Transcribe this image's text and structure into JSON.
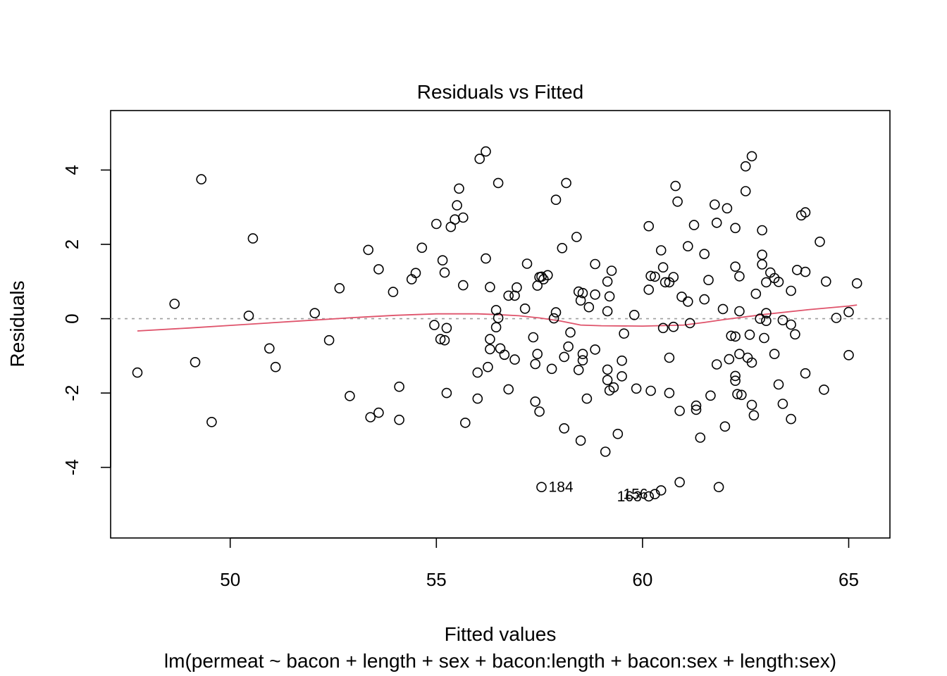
{
  "chart_data": {
    "type": "scatter",
    "title": "Residuals vs Fitted",
    "xlabel": "Fitted values",
    "ylabel": "Residuals",
    "subtitle": "lm(permeat ~ bacon + length + sex + bacon:length + bacon:sex + length:sex)",
    "xlim": [
      47.1,
      66.0
    ],
    "ylim": [
      -5.9,
      5.6
    ],
    "xticks": [
      50,
      55,
      60,
      65
    ],
    "yticks": [
      -4,
      -2,
      0,
      2,
      4
    ],
    "xtick_labels": [
      "50",
      "55",
      "60",
      "65"
    ],
    "ytick_labels": [
      "-4",
      "-2",
      "0",
      "2",
      "4"
    ],
    "zero_line": 0,
    "colors": {
      "points": "#000000",
      "smooth": "#DF536B",
      "zero_line": "#9E9E9E"
    },
    "points": [
      [
        47.75,
        -1.45
      ],
      [
        48.65,
        0.4
      ],
      [
        49.15,
        -1.17
      ],
      [
        49.3,
        3.75
      ],
      [
        49.55,
        -2.78
      ],
      [
        50.45,
        0.08
      ],
      [
        50.55,
        2.16
      ],
      [
        50.95,
        -0.8
      ],
      [
        51.1,
        -1.3
      ],
      [
        52.05,
        0.15
      ],
      [
        52.4,
        -0.58
      ],
      [
        52.65,
        0.82
      ],
      [
        52.9,
        -2.08
      ],
      [
        53.35,
        1.85
      ],
      [
        53.4,
        -2.65
      ],
      [
        53.6,
        1.33
      ],
      [
        53.6,
        -2.53
      ],
      [
        53.95,
        0.72
      ],
      [
        54.1,
        -1.83
      ],
      [
        54.1,
        -2.72
      ],
      [
        54.4,
        1.06
      ],
      [
        54.5,
        1.23
      ],
      [
        54.65,
        1.91
      ],
      [
        54.95,
        -0.17
      ],
      [
        55.0,
        2.55
      ],
      [
        55.1,
        -0.55
      ],
      [
        55.15,
        1.57
      ],
      [
        55.2,
        1.24
      ],
      [
        55.2,
        -0.58
      ],
      [
        55.25,
        -2.0
      ],
      [
        55.25,
        -0.25
      ],
      [
        55.35,
        2.47
      ],
      [
        55.45,
        2.67
      ],
      [
        55.5,
        3.05
      ],
      [
        55.55,
        3.5
      ],
      [
        55.65,
        2.72
      ],
      [
        55.65,
        0.9
      ],
      [
        55.7,
        -2.8
      ],
      [
        56.0,
        -2.15
      ],
      [
        56.0,
        -1.45
      ],
      [
        56.05,
        4.3
      ],
      [
        56.2,
        4.5
      ],
      [
        56.2,
        1.62
      ],
      [
        56.25,
        -1.3
      ],
      [
        56.3,
        0.85
      ],
      [
        56.3,
        -0.55
      ],
      [
        56.3,
        -0.82
      ],
      [
        56.45,
        0.23
      ],
      [
        56.45,
        -0.23
      ],
      [
        56.5,
        3.65
      ],
      [
        56.5,
        0.02
      ],
      [
        56.55,
        -0.8
      ],
      [
        56.65,
        -0.97
      ],
      [
        56.75,
        -1.9
      ],
      [
        56.75,
        0.62
      ],
      [
        56.9,
        0.62
      ],
      [
        56.9,
        -1.1
      ],
      [
        56.95,
        0.84
      ],
      [
        57.15,
        0.27
      ],
      [
        57.2,
        1.48
      ],
      [
        57.35,
        -0.5
      ],
      [
        57.4,
        -1.22
      ],
      [
        57.4,
        -2.23
      ],
      [
        57.45,
        0.89
      ],
      [
        57.45,
        -0.95
      ],
      [
        57.5,
        -2.5
      ],
      [
        57.5,
        1.12
      ],
      [
        57.55,
        1.13
      ],
      [
        57.6,
        1.06
      ],
      [
        57.7,
        1.17
      ],
      [
        57.8,
        -1.35
      ],
      [
        57.85,
        0.01
      ],
      [
        57.9,
        3.2
      ],
      [
        57.9,
        0.17
      ],
      [
        58.05,
        1.9
      ],
      [
        58.1,
        -2.95
      ],
      [
        58.1,
        -1.03
      ],
      [
        58.15,
        3.65
      ],
      [
        58.2,
        -0.75
      ],
      [
        58.25,
        -0.37
      ],
      [
        58.4,
        2.2
      ],
      [
        58.45,
        0.73
      ],
      [
        58.45,
        -1.38
      ],
      [
        58.5,
        -3.28
      ],
      [
        58.5,
        0.49
      ],
      [
        58.55,
        -1.12
      ],
      [
        58.55,
        -0.95
      ],
      [
        58.55,
        0.69
      ],
      [
        58.65,
        -2.15
      ],
      [
        58.7,
        0.31
      ],
      [
        58.85,
        1.47
      ],
      [
        58.85,
        0.65
      ],
      [
        58.85,
        -0.83
      ],
      [
        59.1,
        -3.58
      ],
      [
        59.15,
        1.0
      ],
      [
        59.15,
        0.2
      ],
      [
        59.15,
        -1.37
      ],
      [
        59.15,
        -1.65
      ],
      [
        59.2,
        -1.93
      ],
      [
        59.2,
        0.6
      ],
      [
        59.25,
        1.29
      ],
      [
        59.3,
        -1.85
      ],
      [
        59.4,
        -3.1
      ],
      [
        59.5,
        -1.13
      ],
      [
        59.5,
        -1.55
      ],
      [
        59.55,
        -0.4
      ],
      [
        59.8,
        0.1
      ],
      [
        59.85,
        -1.88
      ],
      [
        60.15,
        2.49
      ],
      [
        60.15,
        0.78
      ],
      [
        60.2,
        1.15
      ],
      [
        60.2,
        -1.94
      ],
      [
        60.3,
        1.13
      ],
      [
        60.45,
        1.84
      ],
      [
        60.5,
        -0.25
      ],
      [
        60.5,
        1.38
      ],
      [
        60.55,
        0.98
      ],
      [
        60.65,
        0.98
      ],
      [
        60.65,
        -1.05
      ],
      [
        60.65,
        -2.0
      ],
      [
        60.75,
        1.12
      ],
      [
        60.75,
        -0.22
      ],
      [
        60.8,
        3.57
      ],
      [
        60.85,
        3.15
      ],
      [
        60.9,
        -2.48
      ],
      [
        60.95,
        0.59
      ],
      [
        61.1,
        1.95
      ],
      [
        61.1,
        0.46
      ],
      [
        61.15,
        -0.12
      ],
      [
        61.25,
        2.52
      ],
      [
        61.3,
        -2.45
      ],
      [
        61.3,
        -2.34
      ],
      [
        61.4,
        -3.2
      ],
      [
        61.5,
        1.74
      ],
      [
        61.5,
        0.52
      ],
      [
        61.6,
        1.04
      ],
      [
        61.65,
        -2.07
      ],
      [
        61.75,
        3.07
      ],
      [
        61.8,
        2.58
      ],
      [
        61.8,
        -1.23
      ],
      [
        61.95,
        0.26
      ],
      [
        62.0,
        -2.9
      ],
      [
        62.05,
        2.97
      ],
      [
        62.1,
        -1.09
      ],
      [
        62.15,
        -0.46
      ],
      [
        62.25,
        2.44
      ],
      [
        62.25,
        1.4
      ],
      [
        62.25,
        -0.48
      ],
      [
        62.25,
        -1.54
      ],
      [
        62.25,
        -1.67
      ],
      [
        62.3,
        -2.03
      ],
      [
        62.35,
        1.14
      ],
      [
        62.35,
        0.2
      ],
      [
        62.35,
        -0.95
      ],
      [
        62.4,
        -2.05
      ],
      [
        62.5,
        4.1
      ],
      [
        62.5,
        3.43
      ],
      [
        62.55,
        -1.05
      ],
      [
        62.6,
        -0.43
      ],
      [
        62.65,
        4.37
      ],
      [
        62.65,
        -1.18
      ],
      [
        62.65,
        -2.32
      ],
      [
        62.7,
        -2.6
      ],
      [
        62.75,
        0.67
      ],
      [
        62.85,
        0.0
      ],
      [
        62.9,
        2.38
      ],
      [
        62.9,
        1.72
      ],
      [
        62.9,
        1.46
      ],
      [
        62.95,
        -0.52
      ],
      [
        63.0,
        0.98
      ],
      [
        63.0,
        -0.06
      ],
      [
        63.0,
        0.15
      ],
      [
        63.1,
        1.24
      ],
      [
        63.2,
        1.09
      ],
      [
        63.2,
        -0.95
      ],
      [
        63.3,
        0.99
      ],
      [
        63.3,
        -1.77
      ],
      [
        63.4,
        -0.04
      ],
      [
        63.4,
        -2.29
      ],
      [
        63.6,
        0.75
      ],
      [
        63.6,
        -0.16
      ],
      [
        63.6,
        -2.7
      ],
      [
        63.7,
        -0.42
      ],
      [
        63.75,
        1.31
      ],
      [
        63.85,
        2.78
      ],
      [
        63.95,
        2.86
      ],
      [
        63.95,
        1.26
      ],
      [
        63.95,
        -1.47
      ],
      [
        64.3,
        2.07
      ],
      [
        64.4,
        -1.91
      ],
      [
        64.45,
        1.0
      ],
      [
        64.7,
        0.02
      ],
      [
        65.0,
        0.18
      ],
      [
        65.0,
        -0.98
      ],
      [
        65.2,
        0.95
      ],
      [
        57.55,
        -4.53
      ],
      [
        60.45,
        -4.62
      ],
      [
        60.3,
        -4.72
      ],
      [
        60.15,
        -4.78
      ],
      [
        60.9,
        -4.4
      ],
      [
        61.85,
        -4.53
      ]
    ],
    "point_labels": [
      {
        "text": "184",
        "x": 57.55,
        "y": -4.53,
        "side": "right"
      },
      {
        "text": "156",
        "x": 60.3,
        "y": -4.72,
        "side": "left"
      },
      {
        "text": "163",
        "x": 60.15,
        "y": -4.78,
        "side": "left"
      }
    ],
    "smooth": [
      [
        47.75,
        -0.33
      ],
      [
        49.0,
        -0.25
      ],
      [
        50.0,
        -0.18
      ],
      [
        51.0,
        -0.11
      ],
      [
        52.0,
        -0.04
      ],
      [
        53.0,
        0.03
      ],
      [
        54.0,
        0.09
      ],
      [
        55.0,
        0.13
      ],
      [
        56.0,
        0.13
      ],
      [
        56.5,
        0.11
      ],
      [
        57.0,
        0.08
      ],
      [
        57.5,
        0.02
      ],
      [
        58.0,
        -0.06
      ],
      [
        58.5,
        -0.17
      ],
      [
        59.0,
        -0.19
      ],
      [
        60.0,
        -0.2
      ],
      [
        61.0,
        -0.17
      ],
      [
        61.5,
        -0.1
      ],
      [
        62.0,
        -0.02
      ],
      [
        63.0,
        0.12
      ],
      [
        64.0,
        0.24
      ],
      [
        65.0,
        0.34
      ],
      [
        65.2,
        0.37
      ]
    ]
  }
}
